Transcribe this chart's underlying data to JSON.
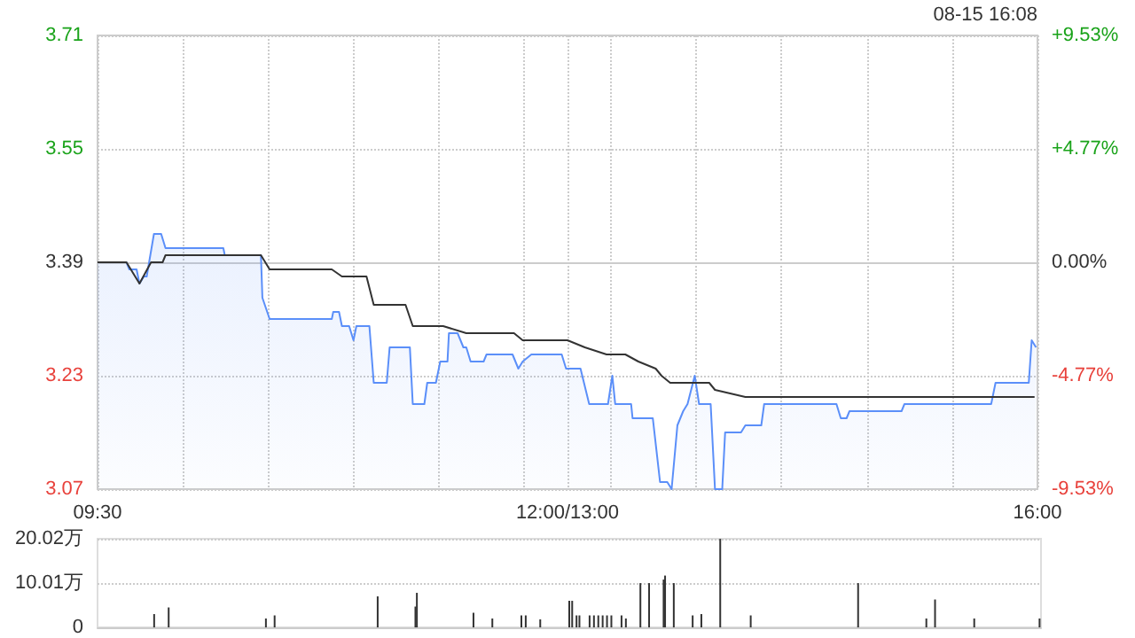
{
  "chart_data": [
    {
      "type": "line",
      "annotations": [
        "08-15 16:08"
      ],
      "xlim": [
        9.5,
        16
      ],
      "xticks": [
        {
          "value": 9.5,
          "label": "09:30"
        },
        {
          "value": 10.09,
          "label": null
        },
        {
          "value": 10.68,
          "label": null
        },
        {
          "value": 11.27,
          "label": null
        },
        {
          "value": 11.86,
          "label": null
        },
        {
          "value": 12.45,
          "label": null
        },
        {
          "value": 12.75,
          "label": "12:00/13:00"
        },
        {
          "value": 13.05,
          "label": null
        },
        {
          "value": 13.64,
          "label": null
        },
        {
          "value": 14.23,
          "label": null
        },
        {
          "value": 14.82,
          "label": null
        },
        {
          "value": 15.41,
          "label": null
        },
        {
          "value": 16,
          "label": "16:00"
        }
      ],
      "ylim": [
        3.07,
        3.71
      ],
      "yticks": [
        3.07,
        3.23,
        3.39,
        3.55,
        3.71
      ],
      "y2lim": [
        -9.53,
        9.53
      ],
      "y2ticks": [
        {
          "value": -9.53,
          "label": "-9.53%"
        },
        {
          "value": -4.77,
          "label": "-4.77%"
        },
        {
          "value": 0,
          "label": "0.00%"
        },
        {
          "value": 4.77,
          "label": "+4.77%"
        },
        {
          "value": 9.53,
          "label": "+9.53%"
        }
      ],
      "grid": true,
      "marker": "none",
      "line_style": "solid",
      "series": [
        {
          "type": "area",
          "color": "#5b8ff9",
          "x": [
            9.5,
            9.7,
            9.72,
            9.77,
            9.79,
            9.82,
            9.84,
            9.89,
            9.94,
            9.97,
            10.37,
            10.38,
            10.63,
            10.64,
            10.69,
            11.12,
            11.13,
            11.17,
            11.19,
            11.24,
            11.27,
            11.29,
            11.38,
            11.41,
            11.5,
            11.52,
            11.66,
            11.68,
            11.76,
            11.78,
            11.84,
            11.87,
            11.92,
            11.93,
            11.99,
            12.03,
            12.05,
            12.08,
            12.17,
            12.19,
            12.37,
            12.41,
            12.44,
            12.5,
            12.71,
            12.74,
            12.84,
            12.9,
            13.03,
            13.06,
            13.08,
            13.19,
            13.2,
            13.34,
            13.39,
            13.44,
            13.47,
            13.51,
            13.55,
            13.58,
            13.63,
            13.66,
            13.74,
            13.77,
            13.82,
            13.84,
            13.95,
            13.98,
            14.09,
            14.11,
            14.61,
            14.64,
            14.68,
            14.7,
            15.06,
            15.08,
            15.68,
            15.71,
            15.94,
            15.96,
            15.99
          ],
          "values": [
            3.39,
            3.39,
            3.38,
            3.38,
            3.36,
            3.37,
            3.37,
            3.43,
            3.43,
            3.41,
            3.41,
            3.4,
            3.4,
            3.34,
            3.31,
            3.31,
            3.32,
            3.32,
            3.3,
            3.3,
            3.28,
            3.3,
            3.3,
            3.22,
            3.22,
            3.27,
            3.27,
            3.19,
            3.19,
            3.22,
            3.22,
            3.25,
            3.25,
            3.29,
            3.29,
            3.27,
            3.27,
            3.25,
            3.25,
            3.26,
            3.26,
            3.24,
            3.25,
            3.26,
            3.26,
            3.24,
            3.24,
            3.19,
            3.19,
            3.23,
            3.19,
            3.19,
            3.17,
            3.17,
            3.08,
            3.08,
            3.07,
            3.16,
            3.18,
            3.19,
            3.23,
            3.19,
            3.19,
            3.07,
            3.07,
            3.15,
            3.15,
            3.16,
            3.16,
            3.19,
            3.19,
            3.17,
            3.17,
            3.18,
            3.18,
            3.19,
            3.19,
            3.22,
            3.22,
            3.28,
            3.27
          ]
        },
        {
          "type": "line",
          "color": "#333333",
          "x": [
            9.5,
            9.7,
            9.79,
            9.87,
            9.95,
            9.97,
            10.63,
            10.69,
            11.12,
            11.19,
            11.36,
            11.41,
            11.63,
            11.68,
            11.89,
            12.05,
            12.38,
            12.44,
            12.71,
            12.75,
            12.87,
            13.02,
            13.15,
            13.24,
            13.36,
            13.4,
            13.46,
            13.73,
            13.77,
            13.98,
            15.98
          ],
          "values": [
            3.39,
            3.39,
            3.36,
            3.39,
            3.39,
            3.4,
            3.4,
            3.38,
            3.38,
            3.37,
            3.37,
            3.33,
            3.33,
            3.3,
            3.3,
            3.29,
            3.29,
            3.28,
            3.28,
            3.28,
            3.27,
            3.26,
            3.26,
            3.25,
            3.24,
            3.23,
            3.22,
            3.22,
            3.21,
            3.2,
            3.2
          ]
        }
      ]
    },
    {
      "type": "bar",
      "color": "#333333",
      "tick_labels": "y",
      "grid": "y",
      "xlim": [
        9.5,
        16
      ],
      "x": [
        9.89,
        9.99,
        10.66,
        10.72,
        11.43,
        11.69,
        11.7,
        12.09,
        12.22,
        12.42,
        12.45,
        12.55,
        12.75,
        12.77,
        12.8,
        12.82,
        12.89,
        12.92,
        12.95,
        12.98,
        13.01,
        13.04,
        13.11,
        13.14,
        13.24,
        13.3,
        13.4,
        13.41,
        13.47,
        13.6,
        13.66,
        13.79,
        14,
        14.74,
        15.21,
        15.27,
        15.54,
        15.99
      ],
      "values": [
        3,
        4.5,
        2,
        2.7,
        7,
        4.7,
        7.8,
        3.3,
        2,
        2.7,
        2.7,
        1.8,
        6,
        6,
        2.7,
        2.7,
        2.7,
        2.7,
        2.7,
        2.7,
        2.7,
        2.7,
        2.7,
        2,
        10,
        10,
        10.8,
        11.7,
        10,
        2.7,
        3,
        20,
        2.7,
        10,
        2,
        6.3,
        2,
        2
      ],
      "ylim": [
        0,
        20.02
      ],
      "yticks": [
        0,
        {
          "value": 10.01,
          "label": "10.01万"
        },
        {
          "value": 20.02,
          "label": "20.02万"
        }
      ]
    }
  ]
}
